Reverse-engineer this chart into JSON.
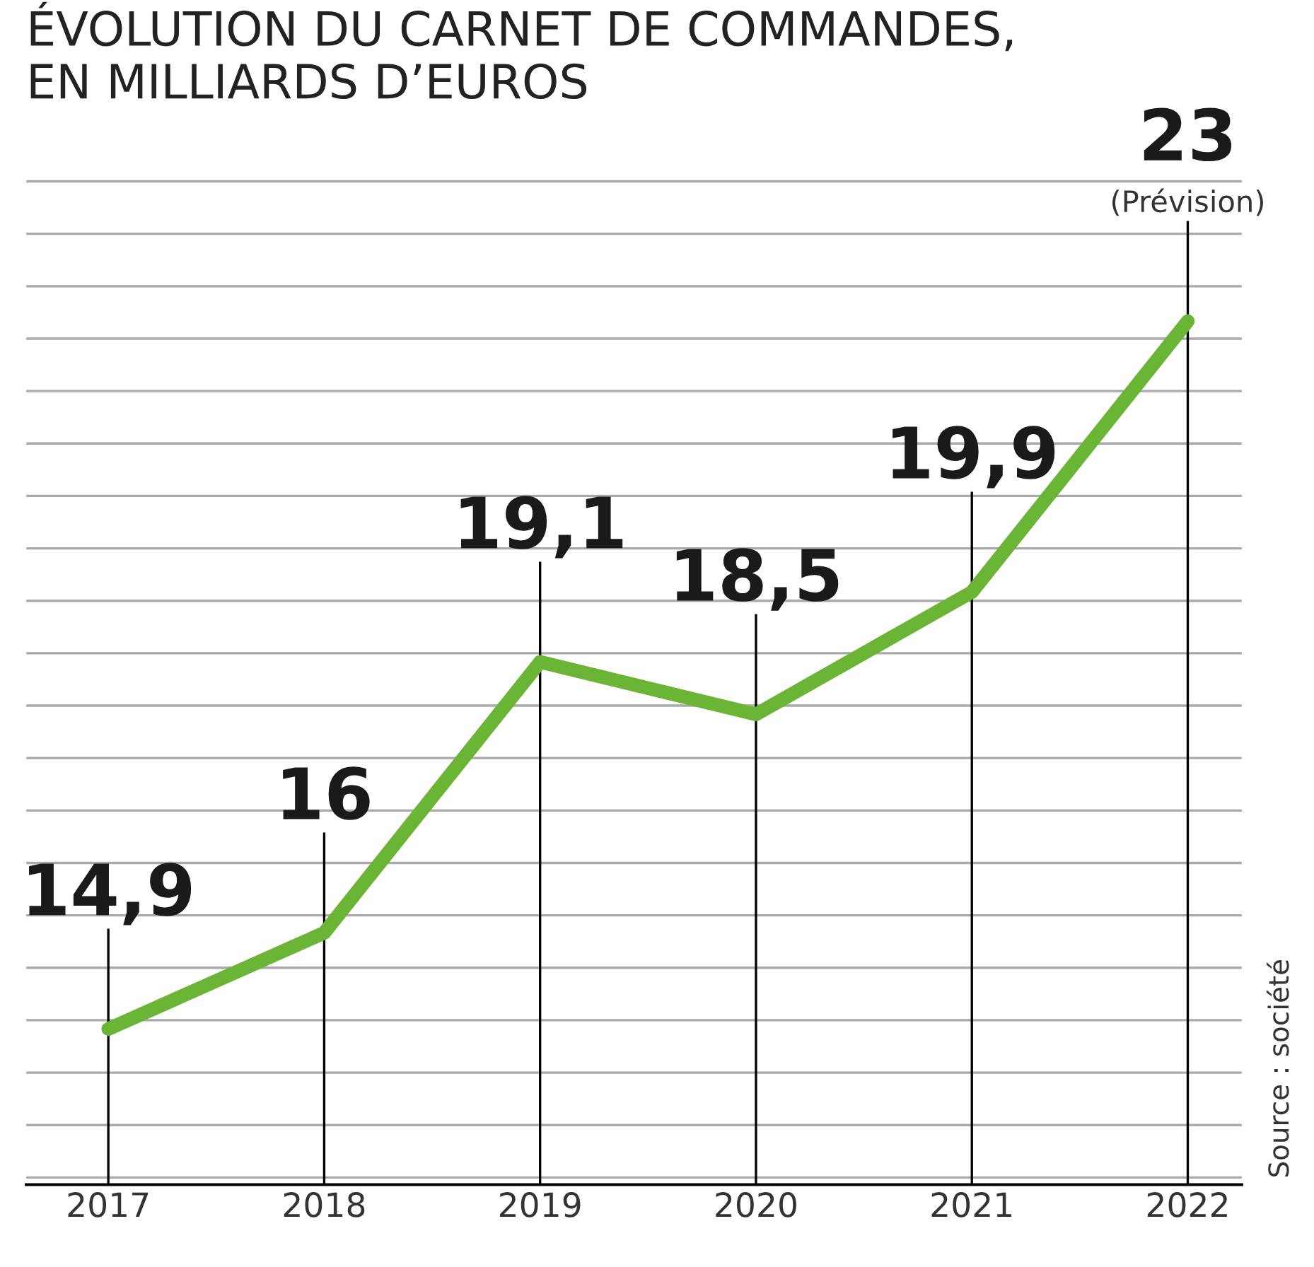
{
  "chart_data": {
    "type": "line",
    "title": "ÉVOLUTION DU CARNET DE COMMANDES,\nEN MILLIARDS D’EUROS",
    "categories": [
      "2017",
      "2018",
      "2019",
      "2020",
      "2021",
      "2022"
    ],
    "series": [
      {
        "color": "#6ab536",
        "values": [
          14.9,
          16,
          19.1,
          18.5,
          19.9,
          23
        ],
        "value_labels": [
          "14,9",
          "16",
          "19,1",
          "18,5",
          "19,9",
          "23"
        ]
      }
    ],
    "annotations": [
      "(Prévision)",
      "Source : société"
    ],
    "grid": true,
    "tick_labels": "x",
    "marker": "none",
    "line_style": "solid",
    "legend": false
  }
}
